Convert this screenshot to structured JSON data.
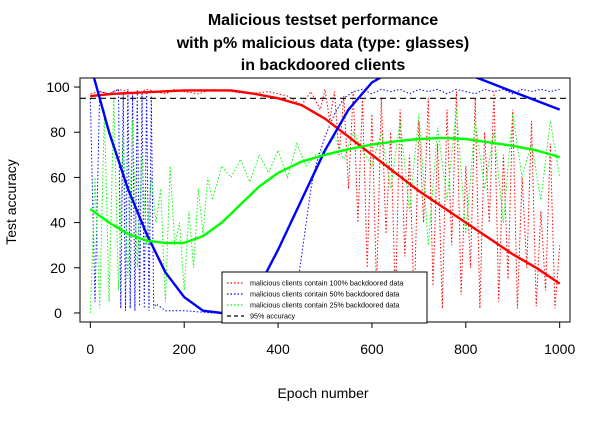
{
  "chart_data": {
    "type": "line",
    "title_lines": [
      "Malicious testset performance",
      "with p% malicious data (type: glasses)",
      "in backdoored clients"
    ],
    "xlabel": "Epoch number",
    "ylabel": "Test accuracy",
    "xlim": [
      0,
      1000
    ],
    "ylim": [
      0,
      100
    ],
    "x_ticks": [
      0,
      200,
      400,
      600,
      800,
      1000
    ],
    "y_ticks": [
      0,
      20,
      40,
      60,
      80,
      100
    ],
    "grid": false,
    "legend_position": "bottom-center",
    "reference_line": {
      "name": "95% accuracy",
      "y": 95,
      "color": "#000000",
      "style": "dashed"
    },
    "series": [
      {
        "name": "malicious clients contain 100% backdoored data",
        "color": "#ff0000",
        "style": "dotted",
        "points": [
          [
            0,
            97
          ],
          [
            20,
            98
          ],
          [
            40,
            97
          ],
          [
            60,
            99
          ],
          [
            80,
            98
          ],
          [
            100,
            97
          ],
          [
            120,
            99
          ],
          [
            140,
            98
          ],
          [
            160,
            97
          ],
          [
            180,
            99
          ],
          [
            200,
            98
          ],
          [
            230,
            97
          ],
          [
            260,
            99
          ],
          [
            300,
            98
          ],
          [
            340,
            97
          ],
          [
            380,
            98
          ],
          [
            420,
            96
          ],
          [
            450,
            92
          ],
          [
            470,
            98
          ],
          [
            490,
            90
          ],
          [
            500,
            99
          ],
          [
            510,
            85
          ],
          [
            520,
            98
          ],
          [
            530,
            70
          ],
          [
            540,
            96
          ],
          [
            550,
            55
          ],
          [
            560,
            98
          ],
          [
            570,
            40
          ],
          [
            580,
            95
          ],
          [
            590,
            20
          ],
          [
            600,
            88
          ],
          [
            610,
            10
          ],
          [
            620,
            95
          ],
          [
            630,
            35
          ],
          [
            640,
            80
          ],
          [
            650,
            5
          ],
          [
            660,
            90
          ],
          [
            670,
            25
          ],
          [
            680,
            70
          ],
          [
            690,
            3
          ],
          [
            700,
            85
          ],
          [
            710,
            40
          ],
          [
            720,
            95
          ],
          [
            730,
            12
          ],
          [
            740,
            75
          ],
          [
            750,
            2
          ],
          [
            760,
            90
          ],
          [
            770,
            30
          ],
          [
            780,
            98
          ],
          [
            790,
            8
          ],
          [
            800,
            65
          ],
          [
            810,
            20
          ],
          [
            820,
            95
          ],
          [
            830,
            2
          ],
          [
            840,
            80
          ],
          [
            850,
            40
          ],
          [
            860,
            98
          ],
          [
            870,
            5
          ],
          [
            880,
            70
          ],
          [
            890,
            15
          ],
          [
            900,
            90
          ],
          [
            910,
            2
          ],
          [
            920,
            60
          ],
          [
            930,
            20
          ],
          [
            940,
            85
          ],
          [
            950,
            3
          ],
          [
            960,
            45
          ],
          [
            970,
            10
          ],
          [
            980,
            75
          ],
          [
            990,
            2
          ],
          [
            1000,
            30
          ]
        ]
      },
      {
        "name": "malicious clients contain 50% backdoored data",
        "color": "#0000ff",
        "style": "dotted",
        "points": [
          [
            0,
            95
          ],
          [
            10,
            5
          ],
          [
            20,
            98
          ],
          [
            40,
            97
          ],
          [
            60,
            99
          ],
          [
            65,
            2
          ],
          [
            70,
            98
          ],
          [
            75,
            1
          ],
          [
            80,
            99
          ],
          [
            85,
            2
          ],
          [
            90,
            98
          ],
          [
            95,
            1
          ],
          [
            100,
            99
          ],
          [
            105,
            3
          ],
          [
            110,
            97
          ],
          [
            115,
            2
          ],
          [
            120,
            98
          ],
          [
            125,
            1
          ],
          [
            130,
            96
          ],
          [
            135,
            2
          ],
          [
            140,
            4
          ],
          [
            160,
            1
          ],
          [
            200,
            1
          ],
          [
            260,
            0
          ],
          [
            300,
            0
          ],
          [
            340,
            1
          ],
          [
            380,
            0
          ],
          [
            420,
            1
          ],
          [
            440,
            10
          ],
          [
            450,
            25
          ],
          [
            460,
            40
          ],
          [
            470,
            55
          ],
          [
            480,
            65
          ],
          [
            500,
            78
          ],
          [
            520,
            88
          ],
          [
            540,
            95
          ],
          [
            560,
            98
          ],
          [
            580,
            99
          ],
          [
            600,
            97
          ],
          [
            620,
            99
          ],
          [
            640,
            98
          ],
          [
            660,
            99
          ],
          [
            680,
            97
          ],
          [
            700,
            99
          ],
          [
            720,
            98
          ],
          [
            740,
            99
          ],
          [
            760,
            97
          ],
          [
            780,
            99
          ],
          [
            800,
            98
          ],
          [
            820,
            97
          ],
          [
            840,
            99
          ],
          [
            860,
            98
          ],
          [
            880,
            99
          ],
          [
            900,
            97
          ],
          [
            920,
            99
          ],
          [
            940,
            98
          ],
          [
            960,
            99
          ],
          [
            980,
            98
          ],
          [
            1000,
            99
          ]
        ]
      },
      {
        "name": "malicious clients contain 25% backdoored data",
        "color": "#00ff00",
        "style": "dotted",
        "points": [
          [
            0,
            0
          ],
          [
            10,
            60
          ],
          [
            20,
            2
          ],
          [
            30,
            90
          ],
          [
            40,
            5
          ],
          [
            50,
            95
          ],
          [
            60,
            10
          ],
          [
            70,
            80
          ],
          [
            80,
            15
          ],
          [
            90,
            85
          ],
          [
            100,
            20
          ],
          [
            110,
            70
          ],
          [
            120,
            30
          ],
          [
            130,
            60
          ],
          [
            140,
            40
          ],
          [
            150,
            55
          ],
          [
            160,
            5
          ],
          [
            170,
            65
          ],
          [
            180,
            30
          ],
          [
            190,
            40
          ],
          [
            200,
            10
          ],
          [
            210,
            45
          ],
          [
            220,
            20
          ],
          [
            230,
            55
          ],
          [
            240,
            35
          ],
          [
            250,
            60
          ],
          [
            260,
            50
          ],
          [
            280,
            65
          ],
          [
            300,
            60
          ],
          [
            320,
            68
          ],
          [
            340,
            58
          ],
          [
            360,
            70
          ],
          [
            380,
            62
          ],
          [
            400,
            72
          ],
          [
            420,
            60
          ],
          [
            440,
            75
          ],
          [
            460,
            65
          ],
          [
            480,
            70
          ],
          [
            500,
            72
          ],
          [
            520,
            78
          ],
          [
            540,
            68
          ],
          [
            560,
            80
          ],
          [
            580,
            72
          ],
          [
            600,
            65
          ],
          [
            620,
            80
          ],
          [
            640,
            55
          ],
          [
            660,
            85
          ],
          [
            680,
            45
          ],
          [
            700,
            88
          ],
          [
            720,
            30
          ],
          [
            740,
            82
          ],
          [
            760,
            50
          ],
          [
            780,
            90
          ],
          [
            800,
            35
          ],
          [
            820,
            85
          ],
          [
            840,
            55
          ],
          [
            860,
            80
          ],
          [
            880,
            40
          ],
          [
            900,
            88
          ],
          [
            920,
            60
          ],
          [
            940,
            75
          ],
          [
            960,
            50
          ],
          [
            980,
            85
          ],
          [
            1000,
            60
          ]
        ]
      }
    ],
    "smooth_curves": [
      {
        "color": "#ff0000",
        "points": [
          [
            0,
            96
          ],
          [
            50,
            97
          ],
          [
            100,
            97.5
          ],
          [
            150,
            98
          ],
          [
            200,
            98.5
          ],
          [
            250,
            98.5
          ],
          [
            300,
            98.5
          ],
          [
            350,
            97
          ],
          [
            400,
            95
          ],
          [
            450,
            92
          ],
          [
            500,
            86
          ],
          [
            550,
            78
          ],
          [
            600,
            70
          ],
          [
            650,
            62
          ],
          [
            700,
            54
          ],
          [
            750,
            47
          ],
          [
            800,
            40
          ],
          [
            850,
            33
          ],
          [
            900,
            26
          ],
          [
            950,
            20
          ],
          [
            1000,
            13
          ]
        ]
      },
      {
        "color": "#0000ff",
        "points": [
          [
            0,
            110
          ],
          [
            40,
            80
          ],
          [
            80,
            55
          ],
          [
            120,
            35
          ],
          [
            160,
            18
          ],
          [
            200,
            7
          ],
          [
            240,
            1
          ],
          [
            280,
            0
          ],
          [
            320,
            3
          ],
          [
            360,
            12
          ],
          [
            400,
            28
          ],
          [
            450,
            50
          ],
          [
            500,
            72
          ],
          [
            550,
            90
          ],
          [
            600,
            102
          ],
          [
            650,
            108
          ],
          [
            700,
            110
          ],
          [
            750,
            109
          ],
          [
            800,
            106
          ],
          [
            850,
            102
          ],
          [
            900,
            98
          ],
          [
            950,
            94
          ],
          [
            1000,
            90
          ]
        ]
      },
      {
        "color": "#00ff00",
        "points": [
          [
            0,
            46
          ],
          [
            40,
            40
          ],
          [
            80,
            35
          ],
          [
            120,
            32
          ],
          [
            160,
            31
          ],
          [
            200,
            31
          ],
          [
            240,
            34
          ],
          [
            280,
            40
          ],
          [
            320,
            48
          ],
          [
            360,
            56
          ],
          [
            400,
            62
          ],
          [
            450,
            67
          ],
          [
            500,
            70
          ],
          [
            550,
            72.5
          ],
          [
            600,
            74.5
          ],
          [
            650,
            76
          ],
          [
            700,
            77
          ],
          [
            750,
            77.5
          ],
          [
            800,
            77
          ],
          [
            850,
            75.5
          ],
          [
            900,
            74
          ],
          [
            950,
            72
          ],
          [
            1000,
            69
          ]
        ]
      }
    ]
  }
}
